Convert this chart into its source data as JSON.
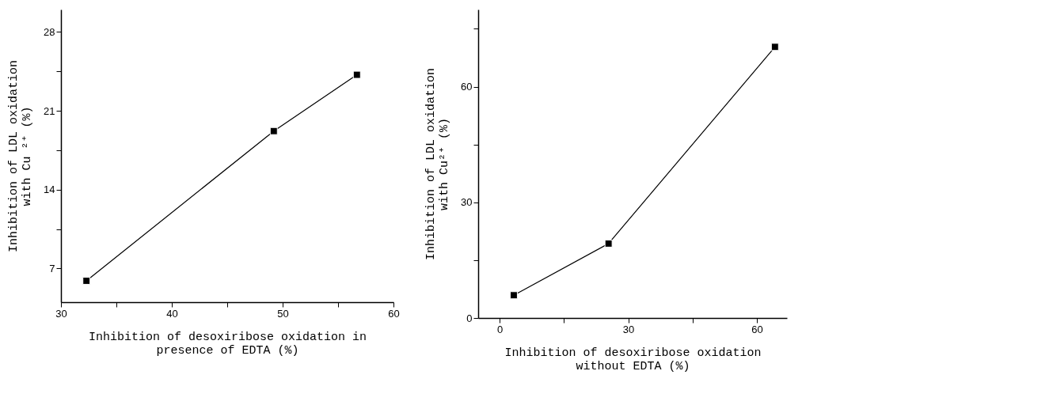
{
  "chart_data": [
    {
      "type": "line",
      "xlabel": "Inhibition of desoxiribose oxidation in\npresence of EDTA (%)",
      "ylabel": "Inhibition of LDL oxidation\nwith Cu ²⁺ (%)",
      "x": [
        32.3,
        49.2,
        56.7
      ],
      "series": [
        {
          "color": "#000000",
          "values": [
            5.9,
            19.2,
            24.2
          ]
        }
      ],
      "xlim": [
        30,
        60
      ],
      "xticks": [
        30,
        {
          "value": 35,
          "label": null
        },
        40,
        {
          "value": 45,
          "label": null
        },
        50,
        {
          "value": 55,
          "label": null
        },
        60
      ],
      "ylim": [
        4,
        30
      ],
      "yticks": [
        7,
        {
          "value": 10.5,
          "label": null
        },
        14,
        {
          "value": 17.5,
          "label": null
        },
        21,
        {
          "value": 24.5,
          "label": null
        },
        28
      ],
      "marker": "square",
      "line_style": "solid",
      "grid": false
    },
    {
      "type": "line",
      "xlabel": "Inhibition of desoxiribose oxidation\nwithout EDTA (%)",
      "ylabel": "Inhibition of LDL oxidation\nwith Cu²⁺ (%)",
      "x": [
        3.3,
        25.4,
        64.2
      ],
      "series": [
        {
          "color": "#000000",
          "values": [
            5.9,
            19.3,
            70.3
          ]
        }
      ],
      "xlim": [
        -5,
        67
      ],
      "xticks": [
        0,
        {
          "value": 15,
          "label": null
        },
        30,
        {
          "value": 45,
          "label": null
        },
        60
      ],
      "ylim": [
        0,
        80
      ],
      "yticks": [
        0,
        {
          "value": 15,
          "label": null
        },
        30,
        {
          "value": 45,
          "label": null
        },
        60,
        {
          "value": 75,
          "label": null
        }
      ],
      "marker": "square",
      "line_style": "solid",
      "grid": false
    }
  ]
}
